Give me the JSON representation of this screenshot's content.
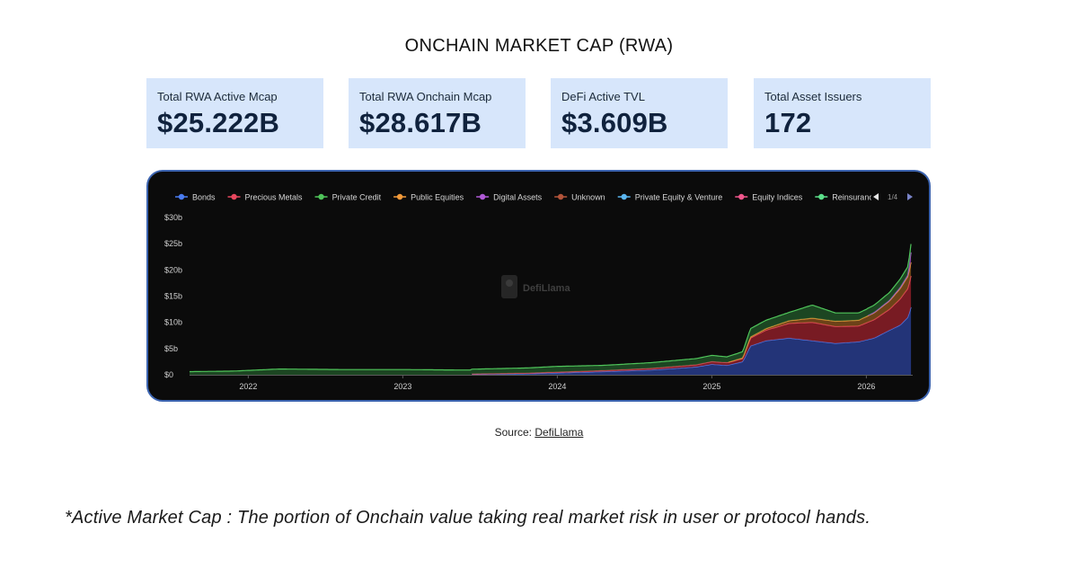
{
  "page": {
    "title": "ONCHAIN MARKET CAP (RWA)",
    "source_prefix": "Source:",
    "source_link": "DefiLlama",
    "footnote": "*Active Market Cap : The portion of Onchain value taking real market risk in user or protocol hands."
  },
  "stats": [
    {
      "label": "Total RWA Active Mcap",
      "value": "$25.222B"
    },
    {
      "label": "Total RWA Onchain Mcap",
      "value": "$28.617B"
    },
    {
      "label": "DeFi Active TVL",
      "value": "$3.609B"
    },
    {
      "label": "Total Asset Issuers",
      "value": "172"
    }
  ],
  "chart_data": {
    "type": "area",
    "watermark": "DefiLlama",
    "legend_page": "1/4",
    "legend_position": "top",
    "grid": false,
    "y_ticks": [
      "$0",
      "$5b",
      "$10b",
      "$15b",
      "$20b",
      "$25b",
      "$30b"
    ],
    "ylim": [
      0,
      30
    ],
    "x_ticks": [
      "2022",
      "2023",
      "2024",
      "2025",
      "2026"
    ],
    "xlim": [
      2021.62,
      2026.3
    ],
    "legend": [
      {
        "name": "Bonds",
        "color": "#4a7cf0"
      },
      {
        "name": "Precious Metals",
        "color": "#e8475e"
      },
      {
        "name": "Private Credit",
        "color": "#4fc45a"
      },
      {
        "name": "Public Equities",
        "color": "#f29a3a"
      },
      {
        "name": "Digital Assets",
        "color": "#b05ad6"
      },
      {
        "name": "Unknown",
        "color": "#b3543a"
      },
      {
        "name": "Private Equity & Venture",
        "color": "#5bb6f0"
      },
      {
        "name": "Equity Indices",
        "color": "#f0578c"
      },
      {
        "name": "Reinsurance",
        "color": "#5ce08a"
      }
    ],
    "series": [
      {
        "name": "Bonds",
        "color": "#4a7cf0",
        "x": [
          2023.44,
          2023.8,
          2024.0,
          2024.3,
          2024.6,
          2024.9,
          2025.0,
          2025.1,
          2025.2,
          2025.25,
          2025.35,
          2025.5,
          2025.65,
          2025.8,
          2025.95,
          2026.05,
          2026.15,
          2026.22,
          2026.27,
          2026.29,
          2026.3
        ],
        "y": [
          0.1,
          0.2,
          0.35,
          0.6,
          0.9,
          1.5,
          2.0,
          1.8,
          2.5,
          5.5,
          6.5,
          7.0,
          6.5,
          6.0,
          6.3,
          7.0,
          8.5,
          9.5,
          11.0,
          13.0,
          14.0
        ]
      },
      {
        "name": "Precious Metals",
        "color": "#e8475e",
        "x": [
          2023.44,
          2023.8,
          2024.0,
          2024.3,
          2024.6,
          2024.9,
          2025.0,
          2025.1,
          2025.2,
          2025.25,
          2025.35,
          2025.5,
          2025.65,
          2025.8,
          2025.95,
          2026.05,
          2026.15,
          2026.22,
          2026.27,
          2026.29,
          2026.3
        ],
        "y": [
          0.05,
          0.1,
          0.15,
          0.2,
          0.3,
          0.4,
          0.5,
          0.5,
          0.6,
          1.5,
          2.0,
          2.8,
          3.5,
          3.2,
          3.0,
          3.5,
          4.0,
          5.0,
          5.5,
          6.0,
          6.5
        ]
      },
      {
        "name": "Private Credit",
        "color": "#4fc45a",
        "x": [
          2021.62,
          2021.9,
          2022.2,
          2022.6,
          2023.0,
          2023.4,
          2023.8,
          2024.0,
          2024.3,
          2024.6,
          2024.9,
          2025.0,
          2025.1,
          2025.2,
          2025.25,
          2025.35,
          2025.5,
          2025.65,
          2025.8,
          2025.95,
          2026.05,
          2026.15,
          2026.22,
          2026.27,
          2026.29,
          2026.3
        ],
        "y": [
          0.6,
          0.7,
          1.1,
          1.0,
          1.0,
          0.9,
          1.0,
          1.1,
          1.0,
          1.1,
          1.2,
          1.2,
          1.1,
          1.2,
          1.6,
          1.6,
          1.6,
          2.5,
          1.6,
          1.4,
          1.4,
          1.5,
          1.6,
          1.6,
          1.6,
          1.6
        ]
      },
      {
        "name": "Public Equities",
        "color": "#f29a3a",
        "x": [
          2025.1,
          2025.2,
          2025.25,
          2025.35,
          2025.5,
          2025.65,
          2025.8,
          2025.95,
          2026.05,
          2026.15,
          2026.22,
          2026.27,
          2026.29,
          2026.3
        ],
        "y": [
          0.05,
          0.1,
          0.2,
          0.3,
          0.5,
          0.8,
          1.0,
          1.1,
          1.3,
          1.6,
          2.0,
          2.3,
          2.6,
          2.8
        ]
      },
      {
        "name": "Digital Assets",
        "color": "#b05ad6",
        "x": [
          2026.0,
          2026.15,
          2026.22,
          2026.27,
          2026.29,
          2026.3
        ],
        "y": [
          0.05,
          0.1,
          0.2,
          0.3,
          2.0,
          0.5
        ]
      }
    ]
  }
}
